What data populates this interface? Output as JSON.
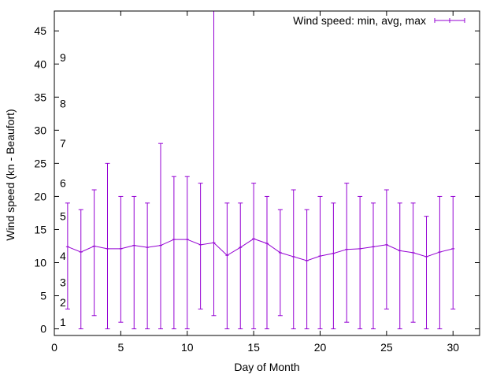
{
  "chart_data": {
    "type": "line",
    "title": "",
    "xlabel": "Day of Month",
    "ylabel": "Wind speed (kn - Beaufort)",
    "xlim": [
      0,
      32
    ],
    "ylim": [
      -1,
      48
    ],
    "xticks": [
      0,
      5,
      10,
      15,
      20,
      25,
      30
    ],
    "yticks": [
      0,
      5,
      10,
      15,
      20,
      25,
      30,
      35,
      40,
      45
    ],
    "grid": false,
    "legend_position": "top-right",
    "color": "#9400d3",
    "beaufort_labels": [
      {
        "label": "1",
        "y": 1
      },
      {
        "label": "2",
        "y": 4
      },
      {
        "label": "3",
        "y": 7
      },
      {
        "label": "4",
        "y": 11
      },
      {
        "label": "5",
        "y": 17
      },
      {
        "label": "6",
        "y": 22
      },
      {
        "label": "7",
        "y": 28
      },
      {
        "label": "8",
        "y": 34
      },
      {
        "label": "9",
        "y": 41
      }
    ],
    "series": [
      {
        "name": "Wind speed: min, avg, max",
        "x": [
          1,
          2,
          3,
          4,
          5,
          6,
          7,
          8,
          9,
          10,
          11,
          12,
          13,
          14,
          15,
          16,
          17,
          18,
          19,
          20,
          21,
          22,
          23,
          24,
          25,
          26,
          27,
          28,
          29,
          30
        ],
        "avg": [
          12.4,
          11.6,
          12.5,
          12.1,
          12.1,
          12.6,
          12.3,
          12.6,
          13.5,
          13.5,
          12.7,
          13.0,
          11.1,
          12.3,
          13.6,
          12.9,
          11.5,
          10.9,
          10.3,
          11.0,
          11.4,
          12.0,
          12.1,
          12.4,
          12.7,
          11.8,
          11.5,
          10.9,
          11.6,
          12.1
        ],
        "min": [
          3,
          0,
          2,
          0,
          1,
          0,
          0,
          0,
          0,
          0,
          3,
          2,
          0,
          0,
          0,
          0,
          2,
          0,
          0,
          0,
          0,
          1,
          0,
          0,
          3,
          0,
          1,
          0,
          0,
          3
        ],
        "max": [
          19,
          18,
          21,
          25,
          20,
          20,
          19,
          28,
          23,
          23,
          22,
          48,
          19,
          19,
          22,
          20,
          18,
          21,
          18,
          20,
          19,
          22,
          20,
          19,
          21,
          19,
          19,
          17,
          20,
          20
        ]
      }
    ]
  }
}
